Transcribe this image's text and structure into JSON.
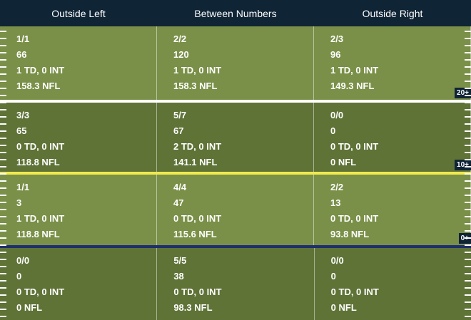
{
  "header": {
    "columns": [
      "Outside Left",
      "Between Numbers",
      "Outside Right"
    ]
  },
  "colors": {
    "header_bg": "#0f2435",
    "field_light": "#7a9048",
    "field_dark": "#5f7337",
    "line_white": "#ffffff",
    "line_yellow": "#f2e94e",
    "line_blue": "#1d2f6e"
  },
  "zones": [
    {
      "marker": "20+",
      "cells": [
        {
          "comp": "1/1",
          "yards": "66",
          "td_int": "1 TD, 0 INT",
          "rating": "158.3 NFL"
        },
        {
          "comp": "2/2",
          "yards": "120",
          "td_int": "1 TD, 0 INT",
          "rating": "158.3 NFL"
        },
        {
          "comp": "2/3",
          "yards": "96",
          "td_int": "1 TD, 0 INT",
          "rating": "149.3 NFL"
        }
      ]
    },
    {
      "marker": "10+",
      "cells": [
        {
          "comp": "3/3",
          "yards": "65",
          "td_int": "0 TD, 0 INT",
          "rating": "118.8 NFL"
        },
        {
          "comp": "5/7",
          "yards": "67",
          "td_int": "2 TD, 0 INT",
          "rating": "141.1 NFL"
        },
        {
          "comp": "0/0",
          "yards": "0",
          "td_int": "0 TD, 0 INT",
          "rating": "0 NFL"
        }
      ]
    },
    {
      "marker": "0+",
      "cells": [
        {
          "comp": "1/1",
          "yards": "3",
          "td_int": "1 TD, 0 INT",
          "rating": "118.8 NFL"
        },
        {
          "comp": "4/4",
          "yards": "47",
          "td_int": "0 TD, 0 INT",
          "rating": "115.6 NFL"
        },
        {
          "comp": "2/2",
          "yards": "13",
          "td_int": "0 TD, 0 INT",
          "rating": "93.8 NFL"
        }
      ]
    },
    {
      "marker": "",
      "cells": [
        {
          "comp": "0/0",
          "yards": "0",
          "td_int": "0 TD, 0 INT",
          "rating": "0 NFL"
        },
        {
          "comp": "5/5",
          "yards": "38",
          "td_int": "0 TD, 0 INT",
          "rating": "98.3 NFL"
        },
        {
          "comp": "0/0",
          "yards": "0",
          "td_int": "0 TD, 0 INT",
          "rating": "0 NFL"
        }
      ]
    }
  ]
}
